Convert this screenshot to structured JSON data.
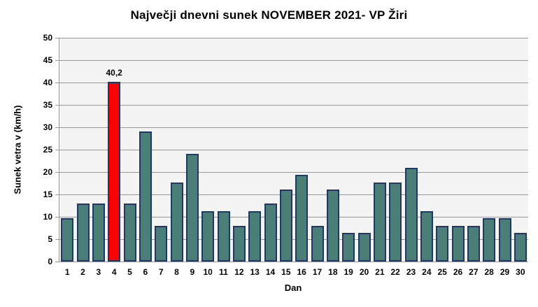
{
  "chart_data": {
    "type": "bar",
    "title": "Največji dnevni sunek NOVEMBER 2021- VP Žiri",
    "xlabel": "Dan",
    "ylabel": "Sunek vetra v (km/h)",
    "categories": [
      "1",
      "2",
      "3",
      "4",
      "5",
      "6",
      "7",
      "8",
      "9",
      "10",
      "11",
      "12",
      "13",
      "14",
      "15",
      "16",
      "17",
      "18",
      "19",
      "20",
      "21",
      "22",
      "23",
      "24",
      "25",
      "26",
      "27",
      "28",
      "29",
      "30"
    ],
    "values": [
      9.7,
      12.9,
      12.9,
      40.2,
      12.9,
      29.0,
      8.0,
      17.7,
      24.1,
      11.3,
      11.3,
      8.0,
      11.3,
      12.9,
      16.1,
      19.3,
      8.0,
      16.1,
      6.4,
      6.4,
      17.7,
      17.7,
      20.9,
      11.3,
      8.0,
      8.0,
      8.0,
      9.7,
      9.7,
      6.4
    ],
    "ylim": [
      0,
      50
    ],
    "ytick_step": 5,
    "ytick_labels": [
      "0",
      "5",
      "10",
      "15",
      "20",
      "25",
      "30",
      "35",
      "40",
      "45",
      "50"
    ],
    "grid": true,
    "legend": "none",
    "highlight_index": 3,
    "highlight_label": "40,2",
    "colors": {
      "bar_fill": "#4A7E76",
      "bar_border": "#1F3864",
      "highlight_fill": "#FF0000",
      "gridline": "#969696",
      "axis": "#969696",
      "plot_bg": "#F4F4F4",
      "page_bg": "#FFFFFF",
      "text": "#000000"
    }
  }
}
